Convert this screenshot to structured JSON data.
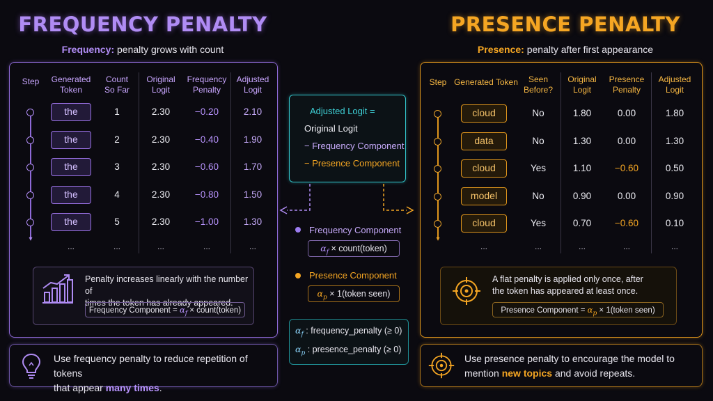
{
  "left": {
    "title": "FREQUENCY PENALTY",
    "subtitle_key": "Frequency:",
    "subtitle_rest": " penalty grows with count",
    "headers": {
      "step": "Step",
      "token": [
        "Generated",
        "Token"
      ],
      "count": [
        "Count",
        "So Far"
      ],
      "orig": [
        "Original",
        "Logit"
      ],
      "pen": [
        "Frequency",
        "Penalty"
      ],
      "adj": [
        "Adjusted",
        "Logit"
      ]
    },
    "rows": [
      {
        "token": "the",
        "count": "1",
        "orig": "2.30",
        "pen": "−0.20",
        "adj": "2.10"
      },
      {
        "token": "the",
        "count": "2",
        "orig": "2.30",
        "pen": "−0.40",
        "adj": "1.90"
      },
      {
        "token": "the",
        "count": "3",
        "orig": "2.30",
        "pen": "−0.60",
        "adj": "1.70"
      },
      {
        "token": "the",
        "count": "4",
        "orig": "2.30",
        "pen": "−0.80",
        "adj": "1.50"
      },
      {
        "token": "the",
        "count": "5",
        "orig": "2.30",
        "pen": "−1.00",
        "adj": "1.30"
      }
    ],
    "ellipsis": "...",
    "note_line1": "Penalty increases linearly with the number of",
    "note_line2": "times the token has already appeared.",
    "formula_pre": "Frequency Component  =  ",
    "formula_alpha": "α",
    "formula_sub": "f",
    "formula_post": "  × count(token)",
    "bottom_line1": "Use frequency penalty to reduce repetition of tokens",
    "bottom_line2_pre": "that appear ",
    "bottom_line2_em": "many times",
    "bottom_line2_post": "."
  },
  "right": {
    "title": "PRESENCE PENALTY",
    "subtitle_key": "Presence:",
    "subtitle_rest": " penalty after first appearance",
    "headers": {
      "step": "Step",
      "token": "Generated Token",
      "seen": [
        "Seen",
        "Before?"
      ],
      "orig": [
        "Original",
        "Logit"
      ],
      "pen": [
        "Presence",
        "Penalty"
      ],
      "adj": [
        "Adjusted",
        "Logit"
      ]
    },
    "rows": [
      {
        "token": "cloud",
        "seen": "No",
        "orig": "1.80",
        "pen": "0.00",
        "adj": "1.80"
      },
      {
        "token": "data",
        "seen": "No",
        "orig": "1.30",
        "pen": "0.00",
        "adj": "1.30"
      },
      {
        "token": "cloud",
        "seen": "Yes",
        "orig": "1.10",
        "pen": "−0.60",
        "adj": "0.50"
      },
      {
        "token": "model",
        "seen": "No",
        "orig": "0.90",
        "pen": "0.00",
        "adj": "0.90"
      },
      {
        "token": "cloud",
        "seen": "Yes",
        "orig": "0.70",
        "pen": "−0.60",
        "adj": "0.10"
      }
    ],
    "ellipsis": "...",
    "note_line1": "A flat penalty is applied only once, after",
    "note_line2": "the token has appeared at least once.",
    "formula_pre": "Presence Component  =  ",
    "formula_alpha": "α",
    "formula_sub": "p",
    "formula_post": "  × 1(token seen)",
    "bottom_line1": "Use presence penalty to encourage the model to",
    "bottom_line2_pre": "mention ",
    "bottom_line2_em": "new topics",
    "bottom_line2_post": " and avoid repeats."
  },
  "center": {
    "eq_title": "Adjusted Logit =",
    "eq_line2": "Original Logit",
    "eq_line3": "− Frequency Component",
    "eq_line4": "− Presence Component",
    "freq_label": "Frequency Component",
    "freq_box_alpha": "α",
    "freq_box_sub": "f",
    "freq_box_rest": " × count(token)",
    "pres_label": "Presence Component",
    "pres_box_alpha": "α",
    "pres_box_sub": "p",
    "pres_box_rest": " × 1(token seen)",
    "def1_alpha": "α",
    "def1_sub": "f",
    "def1_rest": " : frequency_penalty (≥ 0)",
    "def2_alpha": "α",
    "def2_sub": "p",
    "def2_rest": " : presence_penalty (≥ 0)"
  },
  "colors": {
    "frequency": "#b08cf4",
    "presence": "#f5a623",
    "formula": "#33c6cc"
  },
  "icons": [
    "bar-chart-icon",
    "target-icon",
    "lightbulb-icon",
    "target-icon"
  ]
}
